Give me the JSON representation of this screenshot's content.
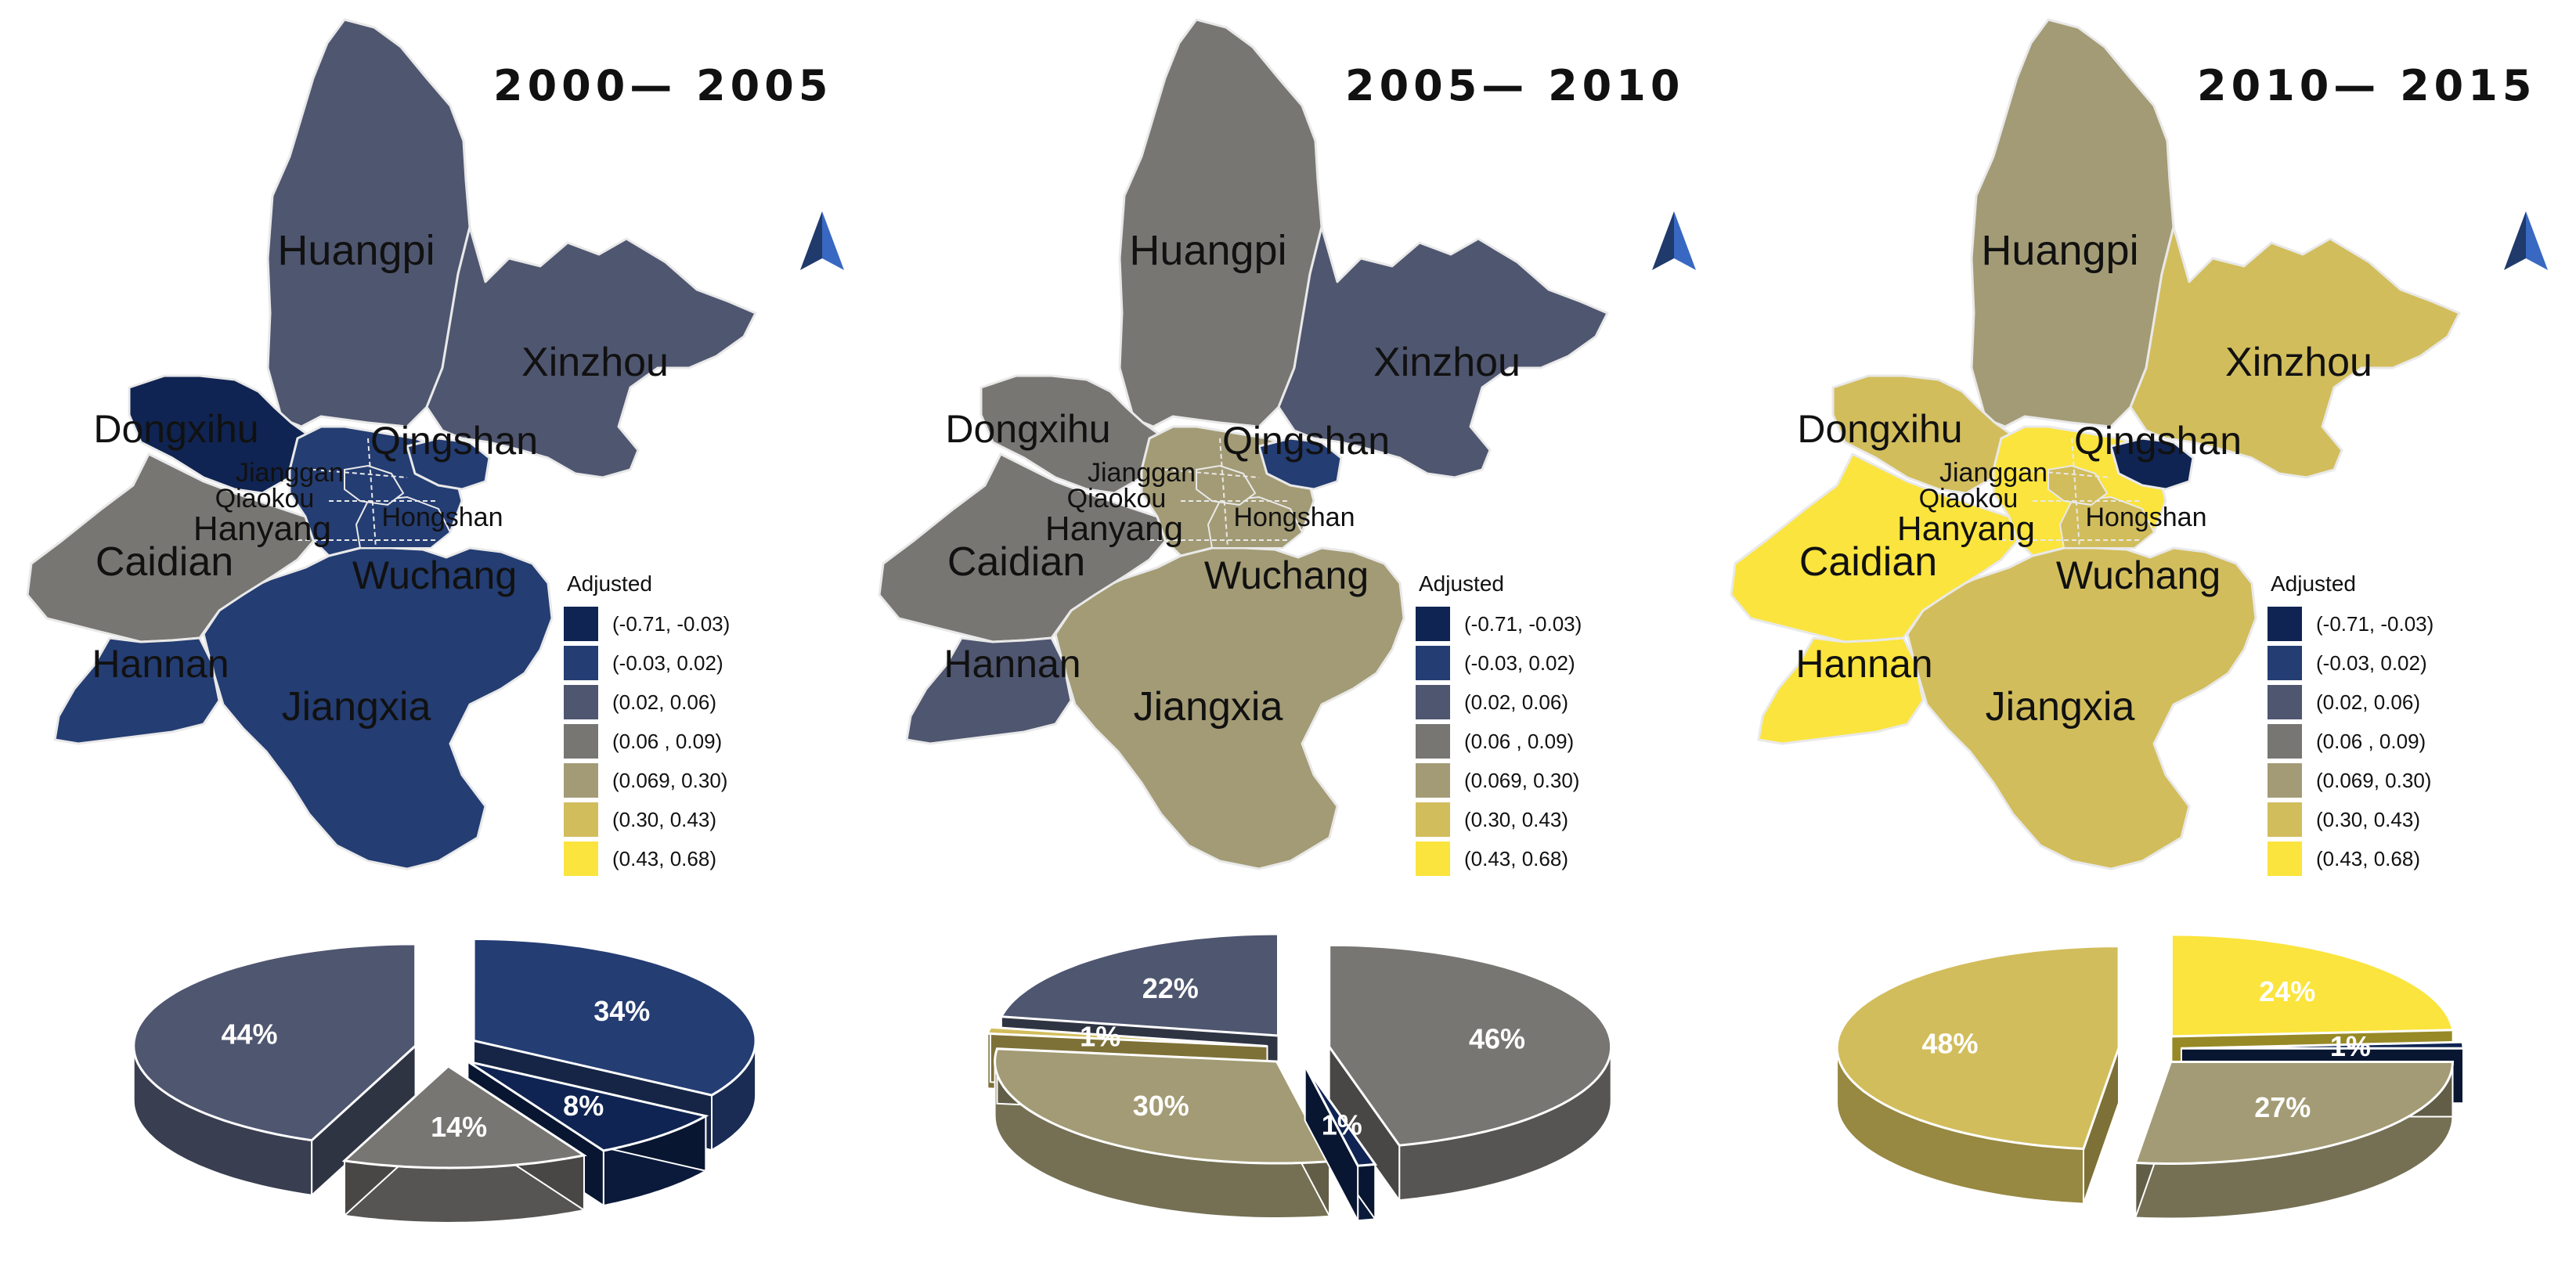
{
  "legend": {
    "title": "Adjusted",
    "classes": [
      {
        "label": "(-0.71, -0.03)",
        "color": "#0f2452"
      },
      {
        "label": "(-0.03, 0.02)",
        "color": "#243d73"
      },
      {
        "label": "(0.02, 0.06)",
        "color": "#4f5670"
      },
      {
        "label": "(0.06 , 0.09)",
        "color": "#787673"
      },
      {
        "label": "(0.069, 0.30)",
        "color": "#a39b75"
      },
      {
        "label": "(0.30, 0.43)",
        "color": "#d2bd5c"
      },
      {
        "label": "(0.43, 0.68)",
        "color": "#fbe43d"
      }
    ]
  },
  "panels": [
    {
      "period": "2000— 2005",
      "districts": {
        "Huangpi": 2,
        "Xinzhou": 2,
        "Dongxihu": 0,
        "Caidian": 3,
        "Hannan": 1,
        "Jiangxia": 1,
        "Core": 1,
        "Qingshan": 1,
        "Wuchang": 1,
        "Hongshan": 1
      },
      "labels": {
        "huangpi": "Huangpi",
        "xinzhou": "Xinzhou",
        "dongxihu": "Dongxihu",
        "qingshan": "Qingshan",
        "jianggan": "Jianggan",
        "qiaokou": "Qiaokou",
        "hanyang": "Hanyang",
        "hongshan": "Hongshan",
        "caidian": "Caidian",
        "wuchang": "Wuchang",
        "hannan": "Hannan",
        "jiangxia": "Jiangxia"
      },
      "pie": [
        {
          "label": "34%",
          "value": 34,
          "class": 1
        },
        {
          "label": "8%",
          "value": 8,
          "class": 0
        },
        {
          "label": "14%",
          "value": 14,
          "class": 3
        },
        {
          "label": "44%",
          "value": 44,
          "class": 2
        }
      ]
    },
    {
      "period": "2005— 2010",
      "districts": {
        "Huangpi": 3,
        "Xinzhou": 2,
        "Dongxihu": 3,
        "Caidian": 3,
        "Hannan": 2,
        "Jiangxia": 4,
        "Core": 4,
        "Qingshan": 1,
        "Wuchang": 4,
        "Hongshan": 4
      },
      "labels": {
        "huangpi": "Huangpi",
        "xinzhou": "Xinzhou",
        "dongxihu": "Dongxihu",
        "qingshan": "Qingshan",
        "jianggan": "Jianggan",
        "qiaokou": "Qiaokou",
        "hanyang": "Hanyang",
        "hongshan": "Hongshan",
        "caidian": "Caidian",
        "wuchang": "Wuchang",
        "hannan": "Hannan",
        "jiangxia": "Jiangxia"
      },
      "pie": [
        {
          "label": "46%",
          "value": 46,
          "class": 3
        },
        {
          "label": "1%",
          "value": 1,
          "class": 0
        },
        {
          "label": "30%",
          "value": 30,
          "class": 4
        },
        {
          "label": "1%",
          "value": 1,
          "class": 5
        },
        {
          "label": "22%",
          "value": 22,
          "class": 2
        }
      ]
    },
    {
      "period": "2010— 2015",
      "districts": {
        "Huangpi": 4,
        "Xinzhou": 5,
        "Dongxihu": 5,
        "Caidian": 6,
        "Hannan": 6,
        "Jiangxia": 5,
        "Core": 6,
        "Qingshan": 0,
        "Wuchang": 5,
        "Hongshan": 5
      },
      "labels": {
        "huangpi": "Huangpi",
        "xinzhou": "Xinzhou",
        "dongxihu": "Dongxihu",
        "qingshan": "Qingshan",
        "jianggan": "Jianggan",
        "qiaokou": "Qiaokou",
        "hanyang": "Hanyang",
        "hongshan": "Hongshan",
        "caidian": "Caidian",
        "wuchang": "Wuchang",
        "hannan": "Hannan",
        "jiangxia": "Jiangxia"
      },
      "pie": [
        {
          "label": "24%",
          "value": 24,
          "class": 6
        },
        {
          "label": "1%",
          "value": 1,
          "class": 0
        },
        {
          "label": "27%",
          "value": 27,
          "class": 4
        },
        {
          "label": "48%",
          "value": 48,
          "class": 5
        }
      ]
    }
  ],
  "north_arrow": {
    "color": "#1f3a6b"
  }
}
